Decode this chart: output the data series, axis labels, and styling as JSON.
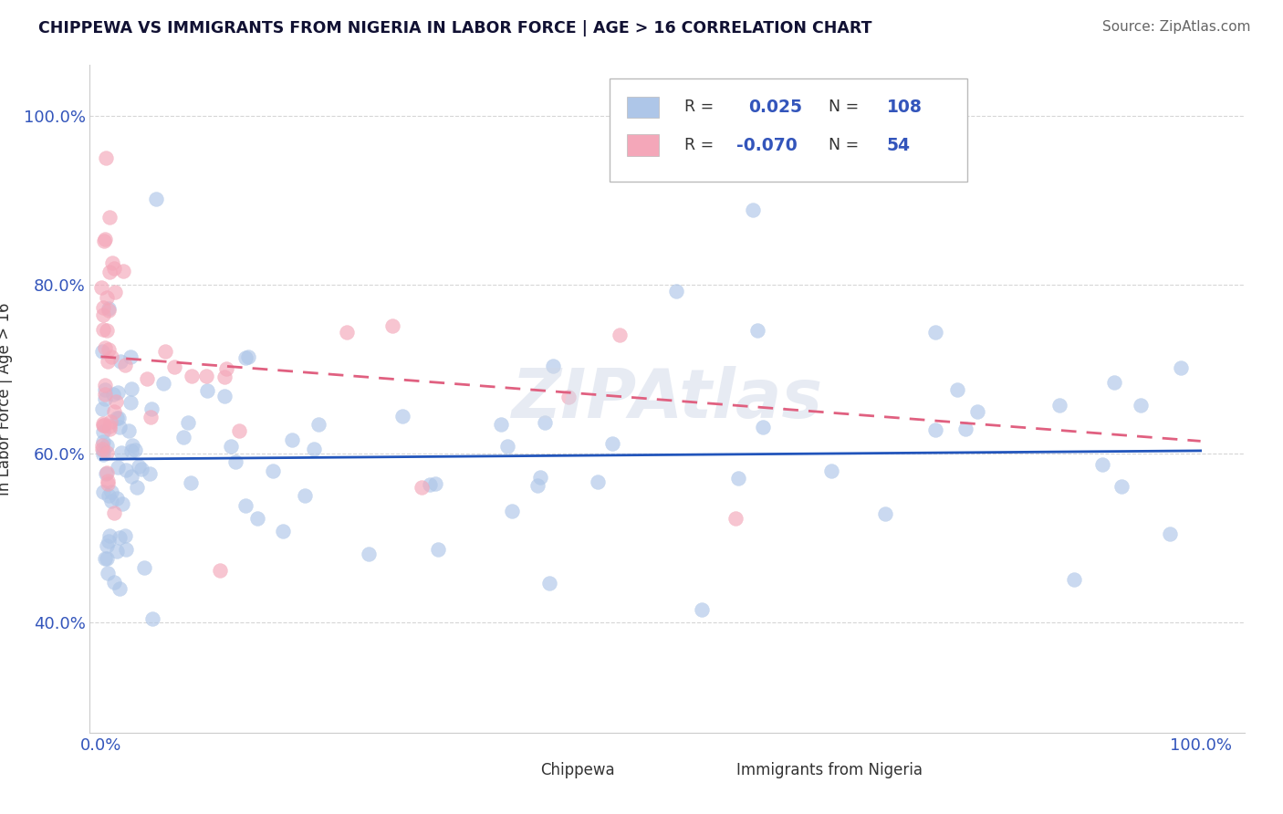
{
  "title": "CHIPPEWA VS IMMIGRANTS FROM NIGERIA IN LABOR FORCE | AGE > 16 CORRELATION CHART",
  "source": "Source: ZipAtlas.com",
  "ylabel": "In Labor Force | Age > 16",
  "chippewa_R": 0.025,
  "chippewa_N": 108,
  "nigeria_R": -0.07,
  "nigeria_N": 54,
  "chippewa_color": "#aec6e8",
  "nigeria_color": "#f4a7b9",
  "chippewa_line_color": "#2255bb",
  "nigeria_line_color": "#e06080",
  "watermark": "ZIPAtlas",
  "legend_label_1": "Chippewa",
  "legend_label_2": "Immigrants from Nigeria",
  "ylim_low": 0.27,
  "ylim_high": 1.06,
  "xlim_low": -0.01,
  "xlim_high": 1.04,
  "y_ticks": [
    0.4,
    0.6,
    0.8,
    1.0
  ],
  "y_tick_labels": [
    "40.0%",
    "60.0%",
    "80.0%",
    "100.0%"
  ],
  "x_ticks": [
    0.0,
    1.0
  ],
  "x_tick_labels": [
    "0.0%",
    "100.0%"
  ]
}
